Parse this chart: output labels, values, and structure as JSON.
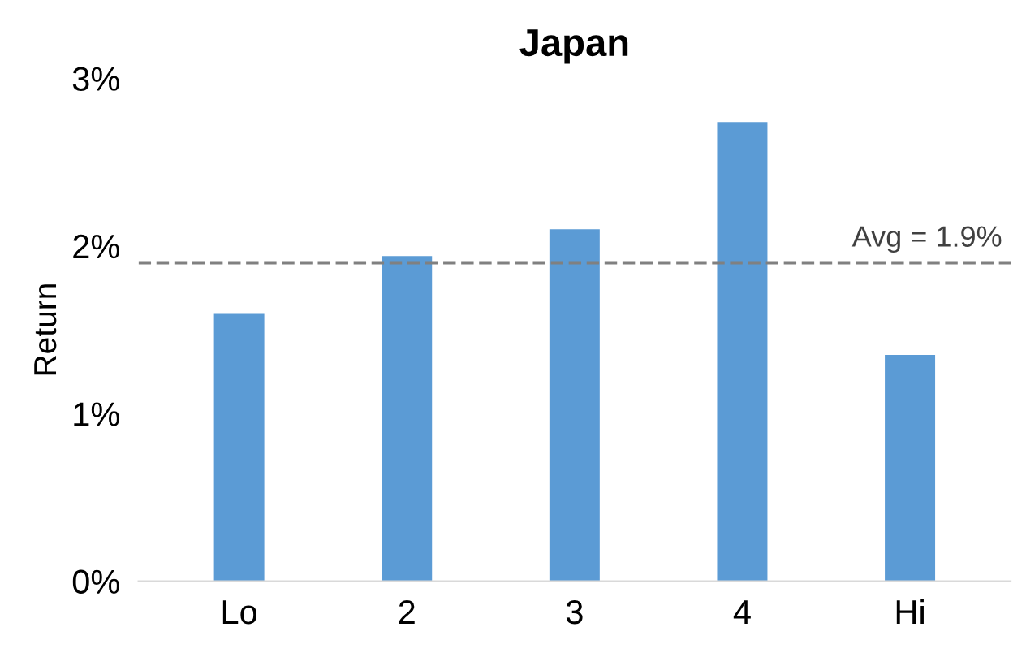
{
  "chart_data": {
    "type": "bar",
    "title": "Japan",
    "ylabel": "Return",
    "categories": [
      "Lo",
      "2",
      "3",
      "4",
      "Hi"
    ],
    "values": [
      1.6,
      1.94,
      2.1,
      2.74,
      1.35
    ],
    "color": "#5b9bd5",
    "ylim": [
      0,
      3
    ],
    "yticks": [
      {
        "value": 0,
        "label": "0%"
      },
      {
        "value": 1,
        "label": "1%"
      },
      {
        "value": 2,
        "label": "2%"
      },
      {
        "value": 3,
        "label": "3%"
      }
    ],
    "ref_lines": [
      {
        "axis": "y",
        "value": 1.9,
        "label": "Avg = 1.9%",
        "color": "#808080",
        "line_style": "dashed"
      }
    ],
    "grid": false,
    "legend": false
  }
}
